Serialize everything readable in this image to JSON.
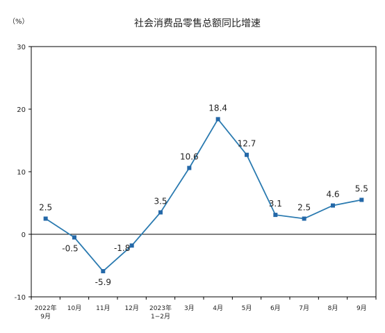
{
  "chart_data": {
    "type": "line",
    "title": "社会消费品零售总额同比增速",
    "unit": "（%）",
    "categories": [
      [
        "2022年",
        "9月"
      ],
      [
        "10月"
      ],
      [
        "11月"
      ],
      [
        "12月"
      ],
      [
        "2023年",
        "1−2月"
      ],
      [
        "3月"
      ],
      [
        "4月"
      ],
      [
        "5月"
      ],
      [
        "6月"
      ],
      [
        "7月"
      ],
      [
        "8月"
      ],
      [
        "9月"
      ]
    ],
    "values": [
      2.5,
      -0.5,
      -5.9,
      -1.8,
      3.5,
      10.6,
      18.4,
      12.7,
      3.1,
      2.5,
      4.6,
      5.5
    ],
    "value_labels": [
      "2.5",
      "-0.5",
      "-5.9",
      "-1.8",
      "3.5",
      "10.6",
      "18.4",
      "12.7",
      "3.1",
      "2.5",
      "4.6",
      "5.5"
    ],
    "ylim": [
      -10,
      30
    ],
    "yticks": [
      -10,
      0,
      10,
      20,
      30
    ],
    "grid": false,
    "line_color": "#2a7ab0",
    "marker_color": "#2468a8"
  }
}
